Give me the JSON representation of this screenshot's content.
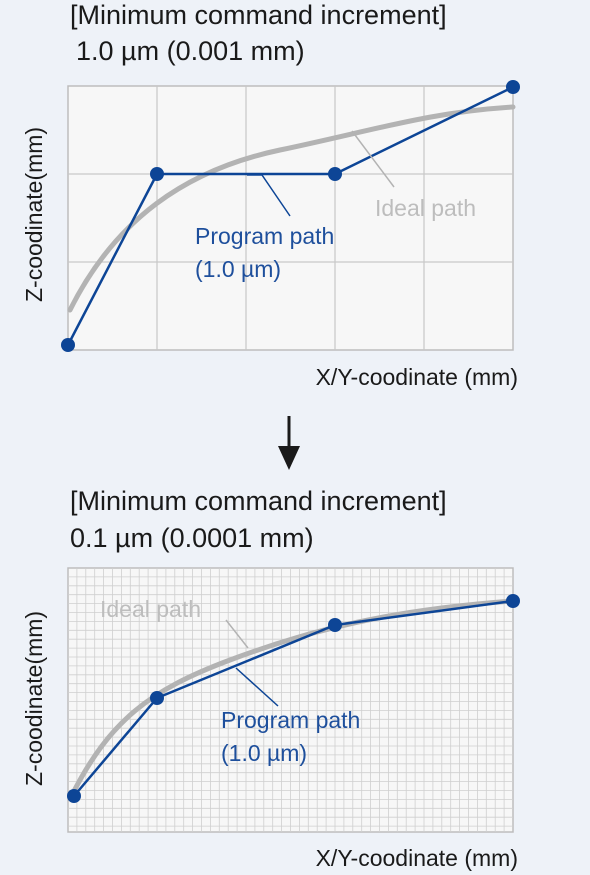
{
  "top_panel": {
    "title_line1": "[Minimum command increment]",
    "title_line2": "1.0 µm (0.001 mm)",
    "y_label": "Z-coodinate(mm)",
    "x_label": "X/Y-coodinate (mm)",
    "program_label_line1": "Program path",
    "program_label_line2": "(1.0 µm)",
    "ideal_label": "Ideal path"
  },
  "bottom_panel": {
    "title_line1": "[Minimum command increment]",
    "title_line2": "0.1 µm (0.0001 mm)",
    "y_label": "Z-coodinate(mm)",
    "x_label": "X/Y-coodinate (mm)",
    "program_label_line1": "Program path",
    "program_label_line2": "(1.0 µm)",
    "ideal_label": "Ideal path"
  },
  "arrow_icon": "down-arrow-icon",
  "colors": {
    "program_path": "#0d4596",
    "ideal_path": "#b3b3b3",
    "grid": "#c8c8c8",
    "background": "#eef2f8",
    "plot_bg": "#f7f7f7"
  }
}
